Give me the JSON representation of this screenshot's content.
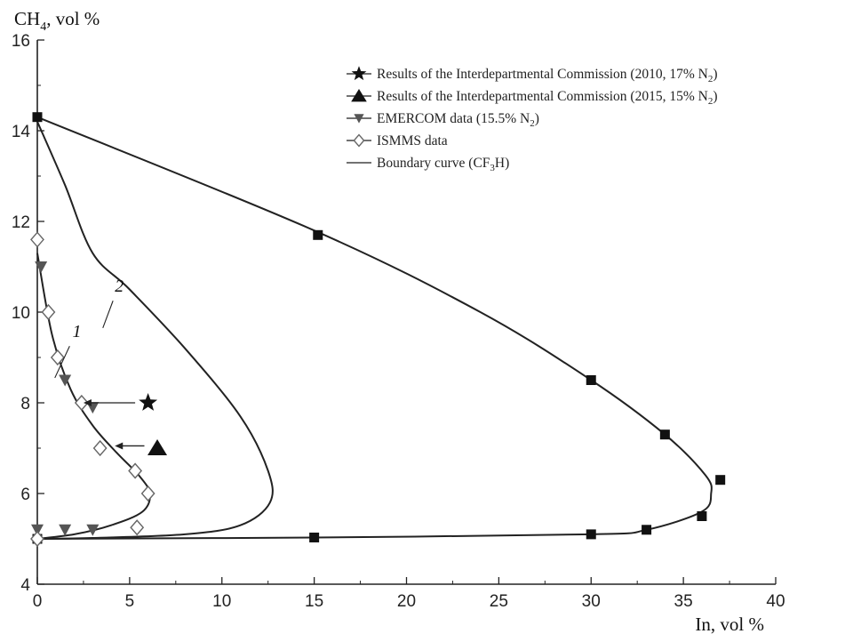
{
  "chart_data": {
    "type": "scatter",
    "title": "",
    "xlabel": "In, vol %",
    "ylabel_main": "CH",
    "ylabel_sub": "4",
    "ylabel_tail": ", vol %",
    "xlim": [
      0,
      40
    ],
    "ylim": [
      4,
      16
    ],
    "x_ticks": [
      "0",
      "5",
      "10",
      "15",
      "20",
      "25",
      "30",
      "35",
      "40"
    ],
    "y_ticks": [
      "4",
      "6",
      "8",
      "10",
      "12",
      "14",
      "16"
    ],
    "grid": false,
    "legend_position": "top-right",
    "legend": [
      {
        "marker": "star",
        "text": "Results of the Interdepartmental Commission (2010, 17% N",
        "sub": "2",
        "tail": ")"
      },
      {
        "marker": "triangle-up",
        "text": "Results of the Interdepartmental Commission (2015, 15% N",
        "sub": "2",
        "tail": ")"
      },
      {
        "marker": "triangle-down",
        "text": "EMERCOM data (15.5% N",
        "sub": "2",
        "tail": ")"
      },
      {
        "marker": "diamond-open",
        "text": "ISMMS data",
        "sub": "",
        "tail": ""
      },
      {
        "marker": "line",
        "text": "Boundary curve (CF",
        "sub": "3",
        "tail": "H)"
      }
    ],
    "curve_labels": [
      {
        "text": "1",
        "x": 1.9,
        "y": 9.45
      },
      {
        "text": "2",
        "x": 4.2,
        "y": 10.45
      }
    ],
    "series": [
      {
        "name": "Boundary curve (CF3H)",
        "kind": "curve",
        "points": [
          [
            0,
            14.3
          ],
          [
            15,
            11.8
          ],
          [
            24,
            10
          ],
          [
            30,
            8.5
          ],
          [
            34,
            7.3
          ],
          [
            36.2,
            6.4
          ],
          [
            36.5,
            6
          ],
          [
            36,
            5.6
          ],
          [
            33,
            5.2
          ],
          [
            30,
            5.1
          ],
          [
            15,
            5.03
          ],
          [
            0,
            5
          ]
        ]
      },
      {
        "name": "",
        "kind": "curve",
        "points": [
          [
            0,
            14.2
          ],
          [
            1.5,
            12.8
          ],
          [
            3,
            11.3
          ],
          [
            5,
            10.5
          ],
          [
            8,
            9.2
          ],
          [
            11,
            7.7
          ],
          [
            12.5,
            6.5
          ],
          [
            12.6,
            5.8
          ],
          [
            11,
            5.3
          ],
          [
            8,
            5.1
          ],
          [
            3,
            5.02
          ],
          [
            0,
            5
          ]
        ]
      },
      {
        "name": "",
        "kind": "curve",
        "points": [
          [
            0,
            11.3
          ],
          [
            0.8,
            9.5
          ],
          [
            1.8,
            8.3
          ],
          [
            3,
            7.5
          ],
          [
            4.3,
            6.9
          ],
          [
            5.5,
            6.4
          ],
          [
            6.1,
            6
          ],
          [
            5.7,
            5.6
          ],
          [
            4,
            5.3
          ],
          [
            2,
            5.1
          ],
          [
            0,
            5
          ]
        ]
      },
      {
        "name": "",
        "kind": "squares",
        "points": [
          [
            0,
            14.3
          ],
          [
            15.2,
            11.7
          ],
          [
            30,
            8.5
          ],
          [
            34,
            7.3
          ],
          [
            37,
            6.3
          ],
          [
            36,
            5.5
          ],
          [
            33,
            5.2
          ],
          [
            30,
            5.1
          ],
          [
            15,
            5.03
          ],
          [
            0,
            5
          ]
        ]
      },
      {
        "name": "Results of the Interdepartmental Commission (2010, 17% N2)",
        "kind": "star",
        "points": [
          [
            6,
            8
          ]
        ]
      },
      {
        "name": "Results of the Interdepartmental Commission (2015, 15% N2)",
        "kind": "triangle-up",
        "points": [
          [
            6.5,
            7
          ]
        ]
      },
      {
        "name": "EMERCOM data (15.5% N2)",
        "kind": "triangle-down",
        "points": [
          [
            0.2,
            11
          ],
          [
            1.5,
            8.5
          ],
          [
            3,
            7.9
          ],
          [
            0,
            5.2
          ],
          [
            1.5,
            5.2
          ],
          [
            3,
            5.2
          ]
        ]
      },
      {
        "name": "ISMMS data",
        "kind": "diamond-open",
        "points": [
          [
            0,
            11.6
          ],
          [
            0.6,
            10
          ],
          [
            1.1,
            9
          ],
          [
            2.4,
            8
          ],
          [
            3.4,
            7
          ],
          [
            5.3,
            6.5
          ],
          [
            6,
            6
          ],
          [
            5.4,
            5.25
          ],
          [
            0,
            5
          ]
        ]
      }
    ],
    "arrows": [
      {
        "from": [
          5.3,
          8
        ],
        "to": [
          2.5,
          8
        ]
      },
      {
        "from": [
          5.8,
          7.05
        ],
        "to": [
          4.2,
          7.05
        ]
      }
    ]
  }
}
